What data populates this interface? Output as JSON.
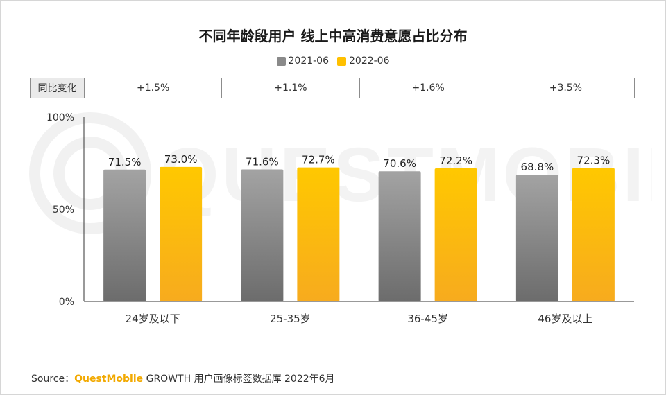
{
  "title": "不同年龄段用户 线上中高消费意愿占比分布",
  "legend": [
    {
      "label": "2021-06",
      "color": "#8a8a8a"
    },
    {
      "label": "2022-06",
      "color": "#ffc000"
    }
  ],
  "yoy": {
    "label": "同比变化",
    "values": [
      "+1.5%",
      "+1.1%",
      "+1.6%",
      "+3.5%"
    ]
  },
  "source": {
    "prefix": "Source：",
    "brand": "QuestMobile",
    "text": " GROWTH 用户画像标签数据库 2022年6月"
  },
  "watermark": "QUESTMOBILE",
  "chart_data": {
    "type": "bar",
    "categories": [
      "24岁及以下",
      "25-35岁",
      "36-45岁",
      "46岁及以上"
    ],
    "series": [
      {
        "name": "2021-06",
        "values": [
          71.5,
          71.6,
          70.6,
          68.8
        ],
        "labels": [
          "71.5%",
          "71.6%",
          "70.6%",
          "68.8%"
        ]
      },
      {
        "name": "2022-06",
        "values": [
          73.0,
          72.7,
          72.2,
          72.3
        ],
        "labels": [
          "73.0%",
          "72.7%",
          "72.2%",
          "72.3%"
        ]
      }
    ],
    "ylim": [
      0,
      100
    ],
    "yticks": [
      0,
      50,
      100
    ],
    "ytick_labels": [
      "0%",
      "50%",
      "100%"
    ],
    "grid": false
  }
}
